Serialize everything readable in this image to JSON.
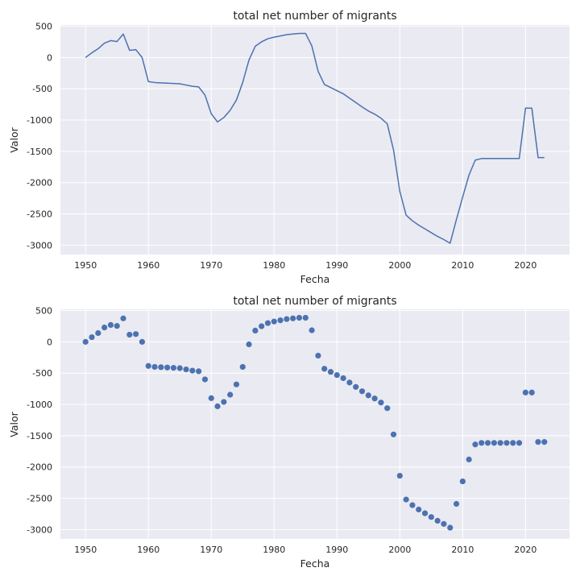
{
  "chart_data": [
    {
      "type": "line",
      "title": "total net number of migrants",
      "xlabel": "Fecha",
      "ylabel": "Valor",
      "xlim": [
        1946,
        2027
      ],
      "ylim": [
        -3150,
        520
      ],
      "xticks": [
        1950,
        1960,
        1970,
        1980,
        1990,
        2000,
        2010,
        2020
      ],
      "yticks": [
        500,
        0,
        -500,
        -1000,
        -1500,
        -2000,
        -2500,
        -3000
      ],
      "grid": true,
      "color": "#4c72b0",
      "background": "#eaeaf2",
      "x": [
        1950,
        1951,
        1952,
        1953,
        1954,
        1955,
        1956,
        1957,
        1958,
        1959,
        1960,
        1961,
        1962,
        1963,
        1964,
        1965,
        1966,
        1967,
        1968,
        1969,
        1970,
        1971,
        1972,
        1973,
        1974,
        1975,
        1976,
        1977,
        1978,
        1979,
        1980,
        1981,
        1982,
        1983,
        1984,
        1985,
        1986,
        1987,
        1988,
        1989,
        1990,
        1991,
        1992,
        1993,
        1994,
        1995,
        1996,
        1997,
        1998,
        1999,
        2000,
        2001,
        2002,
        2003,
        2004,
        2005,
        2006,
        2007,
        2008,
        2009,
        2010,
        2011,
        2012,
        2013,
        2014,
        2015,
        2016,
        2017,
        2018,
        2019,
        2020,
        2021,
        2022,
        2023
      ],
      "y": [
        0,
        75,
        140,
        230,
        270,
        255,
        375,
        115,
        125,
        0,
        -385,
        -400,
        -405,
        -410,
        -415,
        -420,
        -440,
        -460,
        -470,
        -600,
        -900,
        -1030,
        -960,
        -845,
        -680,
        -400,
        -40,
        180,
        250,
        300,
        325,
        345,
        365,
        375,
        385,
        385,
        185,
        -220,
        -430,
        -480,
        -530,
        -580,
        -650,
        -720,
        -790,
        -855,
        -905,
        -970,
        -1060,
        -1480,
        -2140,
        -2520,
        -2610,
        -2680,
        -2740,
        -2800,
        -2860,
        -2910,
        -2970,
        -2590,
        -2230,
        -1880,
        -1640,
        -1615,
        -1615,
        -1615,
        -1615,
        -1615,
        -1615,
        -1615,
        -810,
        -810,
        -1600,
        -1600
      ]
    },
    {
      "type": "scatter",
      "title": "total net number of migrants",
      "xlabel": "Fecha",
      "ylabel": "Valor",
      "xlim": [
        1946,
        2027
      ],
      "ylim": [
        -3150,
        520
      ],
      "xticks": [
        1950,
        1960,
        1970,
        1980,
        1990,
        2000,
        2010,
        2020
      ],
      "yticks": [
        500,
        0,
        -500,
        -1000,
        -1500,
        -2000,
        -2500,
        -3000
      ],
      "grid": true,
      "color": "#4c72b0",
      "background": "#eaeaf2",
      "x": [
        1950,
        1951,
        1952,
        1953,
        1954,
        1955,
        1956,
        1957,
        1958,
        1959,
        1960,
        1961,
        1962,
        1963,
        1964,
        1965,
        1966,
        1967,
        1968,
        1969,
        1970,
        1971,
        1972,
        1973,
        1974,
        1975,
        1976,
        1977,
        1978,
        1979,
        1980,
        1981,
        1982,
        1983,
        1984,
        1985,
        1986,
        1987,
        1988,
        1989,
        1990,
        1991,
        1992,
        1993,
        1994,
        1995,
        1996,
        1997,
        1998,
        1999,
        2000,
        2001,
        2002,
        2003,
        2004,
        2005,
        2006,
        2007,
        2008,
        2009,
        2010,
        2011,
        2012,
        2013,
        2014,
        2015,
        2016,
        2017,
        2018,
        2019,
        2020,
        2021,
        2022,
        2023
      ],
      "y": [
        0,
        75,
        140,
        230,
        270,
        255,
        375,
        115,
        125,
        0,
        -385,
        -400,
        -405,
        -410,
        -415,
        -420,
        -440,
        -460,
        -470,
        -600,
        -900,
        -1030,
        -960,
        -845,
        -680,
        -400,
        -40,
        180,
        250,
        300,
        325,
        345,
        365,
        375,
        385,
        385,
        185,
        -220,
        -430,
        -480,
        -530,
        -580,
        -650,
        -720,
        -790,
        -855,
        -905,
        -970,
        -1060,
        -1480,
        -2140,
        -2520,
        -2610,
        -2680,
        -2740,
        -2800,
        -2860,
        -2910,
        -2970,
        -2590,
        -2230,
        -1880,
        -1640,
        -1615,
        -1615,
        -1615,
        -1615,
        -1615,
        -1615,
        -1615,
        -810,
        -810,
        -1600,
        -1600
      ]
    }
  ]
}
